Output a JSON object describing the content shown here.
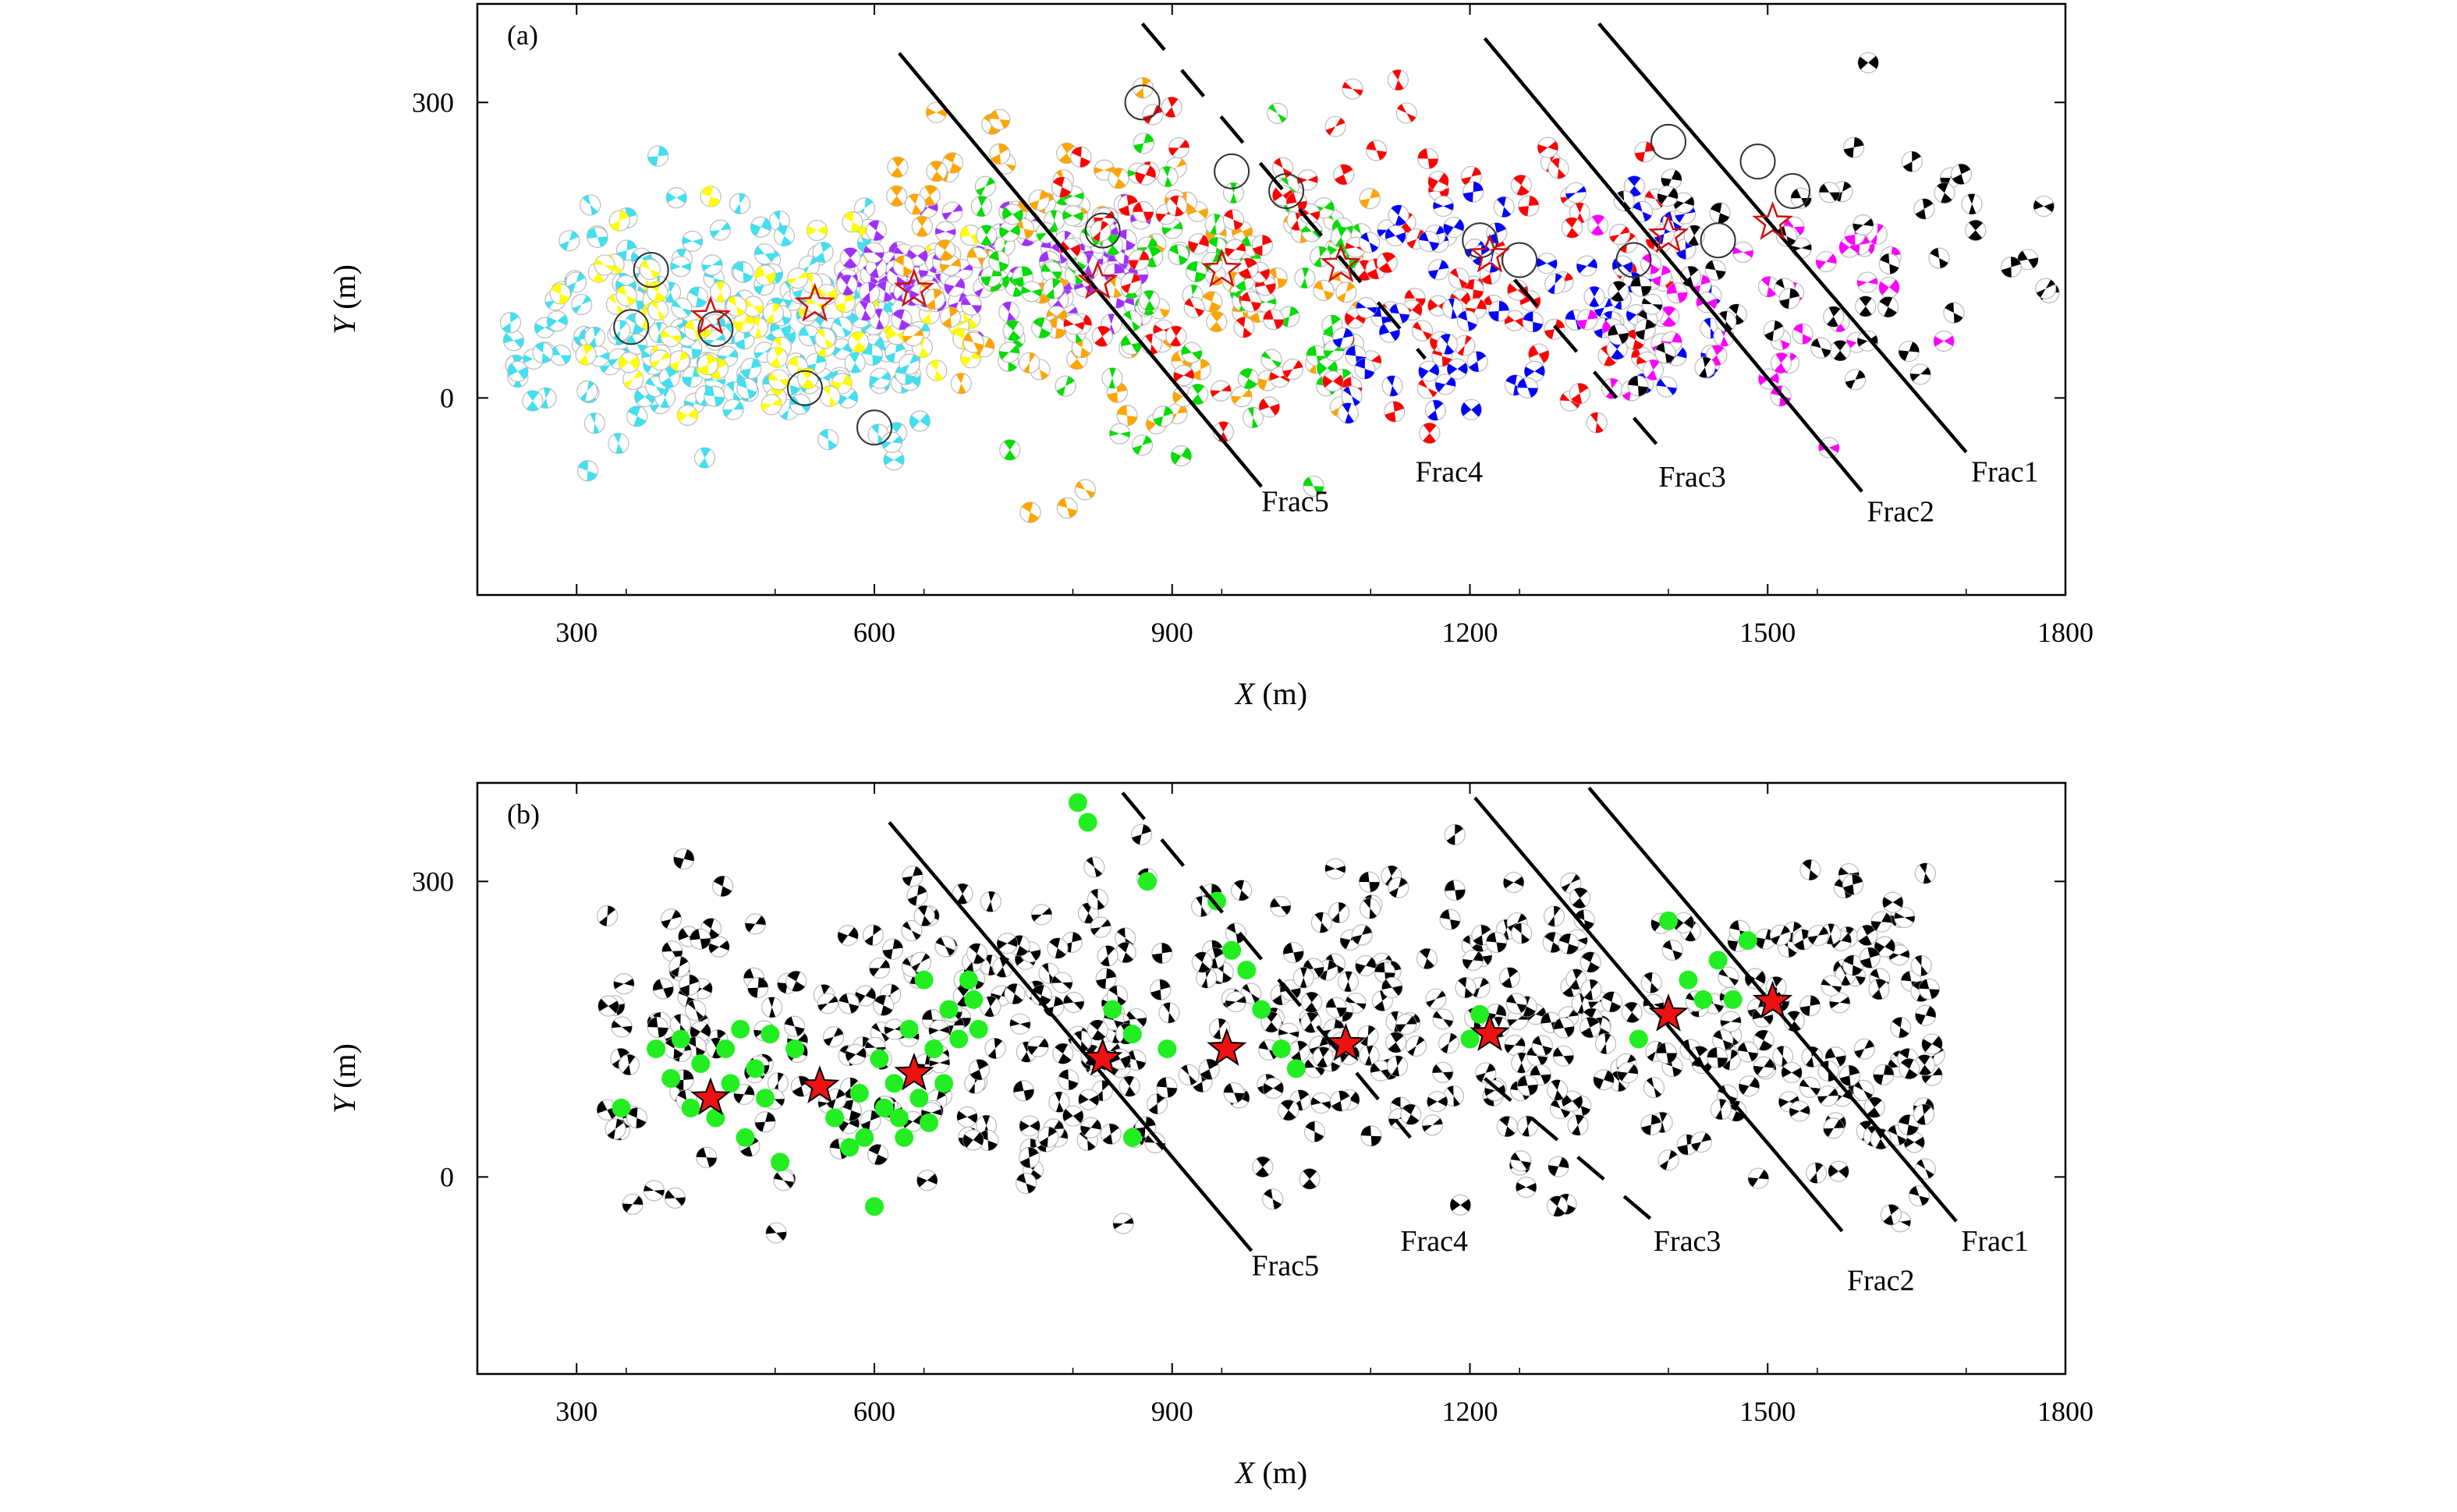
{
  "chart_data": [
    {
      "type": "scatter",
      "panel_label": "(a)",
      "xlabel_var": "X",
      "xlabel_unit": "(m)",
      "ylabel_var": "Y",
      "ylabel_unit": "(m)",
      "xlim": [
        200,
        1800
      ],
      "ylim": [
        -200,
        400
      ],
      "xticks": [
        300,
        600,
        900,
        1200,
        1500,
        1800
      ],
      "yticks": [
        0,
        300
      ],
      "grid": false,
      "legend": "none",
      "fractures": [
        {
          "name": "Frac1",
          "style": "solid",
          "x": [
            1330,
            1700
          ],
          "y": [
            380,
            -55
          ],
          "label_x": 1705,
          "label_y": -85
        },
        {
          "name": "Frac2",
          "style": "solid",
          "x": [
            1215,
            1595
          ],
          "y": [
            365,
            -95
          ],
          "label_x": 1600,
          "label_y": -125
        },
        {
          "name": "Frac3",
          "style": "dashed",
          "x": [
            1245,
            1395
          ],
          "y": [
            120,
            -55
          ],
          "label_x": 1390,
          "label_y": -90
        },
        {
          "name": "Frac4",
          "style": "dashed",
          "x": [
            870,
            1155
          ],
          "y": [
            380,
            40
          ],
          "label_x": 1145,
          "label_y": -85
        },
        {
          "name": "Frac5",
          "style": "solid",
          "x": [
            625,
            990
          ],
          "y": [
            350,
            -90
          ],
          "label_x": 990,
          "label_y": -115
        }
      ],
      "stars": [
        {
          "x": 435,
          "y": 82
        },
        {
          "x": 540,
          "y": 95
        },
        {
          "x": 640,
          "y": 110
        },
        {
          "x": 825,
          "y": 118
        },
        {
          "x": 950,
          "y": 130
        },
        {
          "x": 1070,
          "y": 135
        },
        {
          "x": 1220,
          "y": 145
        },
        {
          "x": 1400,
          "y": 165
        },
        {
          "x": 1505,
          "y": 178
        }
      ],
      "stages": [
        {
          "color": "#40e0f0",
          "x_range": [
            230,
            650
          ],
          "y_range": [
            -110,
            250
          ],
          "count": 190
        },
        {
          "color": "#ffff00",
          "x_range": [
            280,
            700
          ],
          "y_range": [
            -90,
            240
          ],
          "count": 75
        },
        {
          "color": "#a030ff",
          "x_range": [
            570,
            870
          ],
          "y_range": [
            30,
            230
          ],
          "count": 95
        },
        {
          "color": "#ffa500",
          "x_range": [
            620,
            1100
          ],
          "y_range": [
            -150,
            380
          ],
          "count": 90
        },
        {
          "color": "#00dd00",
          "x_range": [
            700,
            1100
          ],
          "y_range": [
            -130,
            360
          ],
          "count": 100
        },
        {
          "color": "#ff0000",
          "x_range": [
            780,
            1400
          ],
          "y_range": [
            -120,
            380
          ],
          "count": 120
        },
        {
          "color": "#0000ff",
          "x_range": [
            1070,
            1450
          ],
          "y_range": [
            -70,
            260
          ],
          "count": 70
        },
        {
          "color": "#ff00ff",
          "x_range": [
            1300,
            1680
          ],
          "y_range": [
            -110,
            260
          ],
          "count": 40
        },
        {
          "color": "#000000",
          "x_range": [
            1330,
            1790
          ],
          "y_range": [
            -90,
            380
          ],
          "count": 55
        }
      ],
      "circled_events": [
        {
          "x": 355,
          "y": 72
        },
        {
          "x": 375,
          "y": 130
        },
        {
          "x": 440,
          "y": 70
        },
        {
          "x": 600,
          "y": -30
        },
        {
          "x": 530,
          "y": 10
        },
        {
          "x": 830,
          "y": 170
        },
        {
          "x": 870,
          "y": 300
        },
        {
          "x": 960,
          "y": 230
        },
        {
          "x": 1210,
          "y": 160
        },
        {
          "x": 1250,
          "y": 140
        },
        {
          "x": 1365,
          "y": 140
        },
        {
          "x": 1400,
          "y": 260
        },
        {
          "x": 1450,
          "y": 160
        },
        {
          "x": 1490,
          "y": 240
        },
        {
          "x": 1525,
          "y": 210
        },
        {
          "x": 1015,
          "y": 210
        }
      ]
    },
    {
      "type": "scatter",
      "panel_label": "(b)",
      "xlabel_var": "X",
      "xlabel_unit": "(m)",
      "ylabel_var": "Y",
      "ylabel_unit": "(m)",
      "xlim": [
        200,
        1800
      ],
      "ylim": [
        -200,
        400
      ],
      "xticks": [
        300,
        600,
        900,
        1200,
        1500,
        1800
      ],
      "yticks": [
        0,
        300
      ],
      "grid": false,
      "legend": "none",
      "fractures": [
        {
          "name": "Frac1",
          "style": "solid",
          "x": [
            1320,
            1690
          ],
          "y": [
            395,
            -45
          ],
          "label_x": 1695,
          "label_y": -75
        },
        {
          "name": "Frac2",
          "style": "solid",
          "x": [
            1205,
            1575
          ],
          "y": [
            385,
            -55
          ],
          "label_x": 1580,
          "label_y": -115
        },
        {
          "name": "Frac3",
          "style": "dashed",
          "x": [
            1215,
            1385
          ],
          "y": [
            100,
            -45
          ],
          "label_x": 1385,
          "label_y": -75
        },
        {
          "name": "Frac4",
          "style": "dashed",
          "x": [
            850,
            1140
          ],
          "y": [
            390,
            40
          ],
          "label_x": 1130,
          "label_y": -75
        },
        {
          "name": "Frac5",
          "style": "solid",
          "x": [
            615,
            980
          ],
          "y": [
            360,
            -75
          ],
          "label_x": 980,
          "label_y": -100
        }
      ],
      "stars": [
        {
          "x": 435,
          "y": 80
        },
        {
          "x": 545,
          "y": 92
        },
        {
          "x": 640,
          "y": 105
        },
        {
          "x": 830,
          "y": 120
        },
        {
          "x": 955,
          "y": 130
        },
        {
          "x": 1075,
          "y": 135
        },
        {
          "x": 1220,
          "y": 145
        },
        {
          "x": 1400,
          "y": 165
        },
        {
          "x": 1505,
          "y": 178
        }
      ],
      "events": {
        "color": "#000000",
        "x_range": [
          330,
          1670
        ],
        "y_range": [
          -100,
          390
        ],
        "count": 520
      },
      "green_dots": {
        "color": "#22ee22",
        "points": [
          [
            345,
            70
          ],
          [
            380,
            130
          ],
          [
            395,
            100
          ],
          [
            405,
            140
          ],
          [
            415,
            70
          ],
          [
            425,
            115
          ],
          [
            440,
            60
          ],
          [
            450,
            130
          ],
          [
            455,
            95
          ],
          [
            465,
            150
          ],
          [
            470,
            40
          ],
          [
            480,
            110
          ],
          [
            490,
            80
          ],
          [
            495,
            145
          ],
          [
            505,
            15
          ],
          [
            520,
            130
          ],
          [
            560,
            60
          ],
          [
            575,
            30
          ],
          [
            585,
            85
          ],
          [
            590,
            40
          ],
          [
            600,
            -30
          ],
          [
            605,
            120
          ],
          [
            610,
            70
          ],
          [
            620,
            95
          ],
          [
            625,
            60
          ],
          [
            630,
            40
          ],
          [
            635,
            150
          ],
          [
            645,
            80
          ],
          [
            650,
            200
          ],
          [
            655,
            55
          ],
          [
            660,
            130
          ],
          [
            670,
            95
          ],
          [
            675,
            170
          ],
          [
            685,
            140
          ],
          [
            695,
            200
          ],
          [
            700,
            180
          ],
          [
            705,
            150
          ],
          [
            805,
            380
          ],
          [
            815,
            360
          ],
          [
            840,
            170
          ],
          [
            860,
            145
          ],
          [
            860,
            40
          ],
          [
            875,
            300
          ],
          [
            895,
            130
          ],
          [
            945,
            280
          ],
          [
            960,
            230
          ],
          [
            975,
            210
          ],
          [
            990,
            170
          ],
          [
            1010,
            130
          ],
          [
            1025,
            110
          ],
          [
            1200,
            140
          ],
          [
            1210,
            165
          ],
          [
            1370,
            140
          ],
          [
            1400,
            260
          ],
          [
            1420,
            200
          ],
          [
            1435,
            180
          ],
          [
            1450,
            220
          ],
          [
            1465,
            180
          ],
          [
            1480,
            240
          ]
        ]
      }
    }
  ]
}
